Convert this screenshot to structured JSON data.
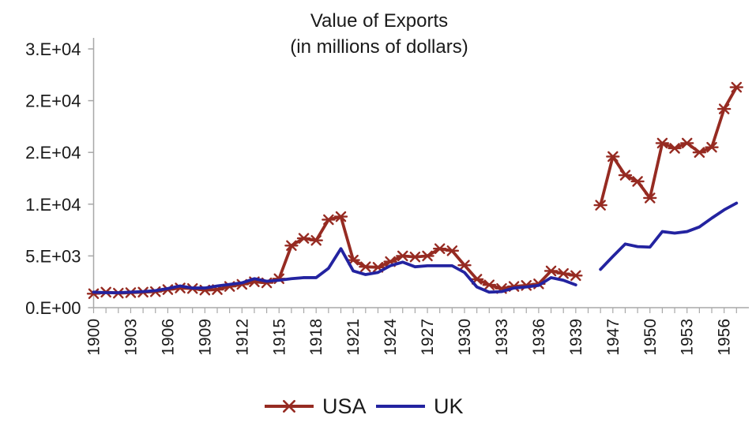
{
  "title": {
    "line1": "Value of Exports",
    "line2": "(in millions of dollars)"
  },
  "colors": {
    "usa_series": "#962B22",
    "uk_series": "#2323A0",
    "axis": "#A8A8A8",
    "text": "#1A1A1A"
  },
  "legend": {
    "items": [
      {
        "label": "USA",
        "marker": "asterisk-marker-icon",
        "color": "#962B22"
      },
      {
        "label": "UK",
        "marker": "plain-line-icon",
        "color": "#2323A0"
      }
    ],
    "position": "bottom-center"
  },
  "chart_data": {
    "type": "line",
    "title": "Value of Exports (in millions of dollars)",
    "xlabel": "",
    "ylabel": "",
    "ylim": [
      0,
      25000
    ],
    "grid": false,
    "note_visible_in_pixels": "category axis skips WWII years: data runs 1900-1939, one blank slot, then 1946-1957; both lines are broken across the gap",
    "x_labeled_ticks": [
      "1900",
      "1903",
      "1906",
      "1909",
      "1912",
      "1915",
      "1918",
      "1921",
      "1924",
      "1927",
      "1930",
      "1933",
      "1936",
      "1939",
      "1947",
      "1950",
      "1953",
      "1956"
    ],
    "y_ticks": [
      {
        "value": 0,
        "label": "0.E+00"
      },
      {
        "value": 5000,
        "label": "5.E+03"
      },
      {
        "value": 10000,
        "label": "1.E+04"
      },
      {
        "value": 15000,
        "label": "2.E+04"
      },
      {
        "value": 20000,
        "label": "2.E+04"
      },
      {
        "value": 25000,
        "label": "3.E+04"
      }
    ],
    "categories": [
      "1900",
      "1901",
      "1902",
      "1903",
      "1904",
      "1905",
      "1906",
      "1907",
      "1908",
      "1909",
      "1910",
      "1911",
      "1912",
      "1913",
      "1914",
      "1915",
      "1916",
      "1917",
      "1918",
      "1919",
      "1920",
      "1921",
      "1922",
      "1923",
      "1924",
      "1925",
      "1926",
      "1927",
      "1928",
      "1929",
      "1930",
      "1931",
      "1932",
      "1933",
      "1934",
      "1935",
      "1936",
      "1937",
      "1938",
      "1939",
      "",
      "1946",
      "1947",
      "1948",
      "1949",
      "1950",
      "1951",
      "1952",
      "1953",
      "1954",
      "1955",
      "1956",
      "1957"
    ],
    "series": [
      {
        "name": "USA",
        "color": "#962B22",
        "marker": "asterisk",
        "values": [
          1350,
          1500,
          1400,
          1450,
          1500,
          1550,
          1750,
          1900,
          1850,
          1700,
          1750,
          2050,
          2250,
          2500,
          2400,
          2800,
          6000,
          6700,
          6500,
          8500,
          8800,
          4600,
          3950,
          3900,
          4450,
          5000,
          4900,
          5000,
          5700,
          5500,
          4100,
          2750,
          2200,
          1850,
          2050,
          2150,
          2300,
          3550,
          3300,
          3100,
          null,
          9900,
          14600,
          12800,
          12200,
          10600,
          15900,
          15400,
          15900,
          15000,
          15500,
          19200,
          21300
        ]
      },
      {
        "name": "UK",
        "color": "#2323A0",
        "marker": "none",
        "values": [
          1500,
          1450,
          1450,
          1500,
          1550,
          1650,
          1850,
          2100,
          1900,
          1900,
          2100,
          2250,
          2400,
          2800,
          2550,
          2650,
          2800,
          2900,
          2900,
          3800,
          5700,
          3550,
          3200,
          3400,
          4050,
          4400,
          3950,
          4050,
          4050,
          4050,
          3400,
          2000,
          1500,
          1550,
          1900,
          2000,
          2150,
          2900,
          2650,
          2200,
          null,
          3700,
          4950,
          6150,
          5900,
          5850,
          7350,
          7200,
          7350,
          7800,
          8650,
          9450,
          10100
        ]
      }
    ]
  }
}
